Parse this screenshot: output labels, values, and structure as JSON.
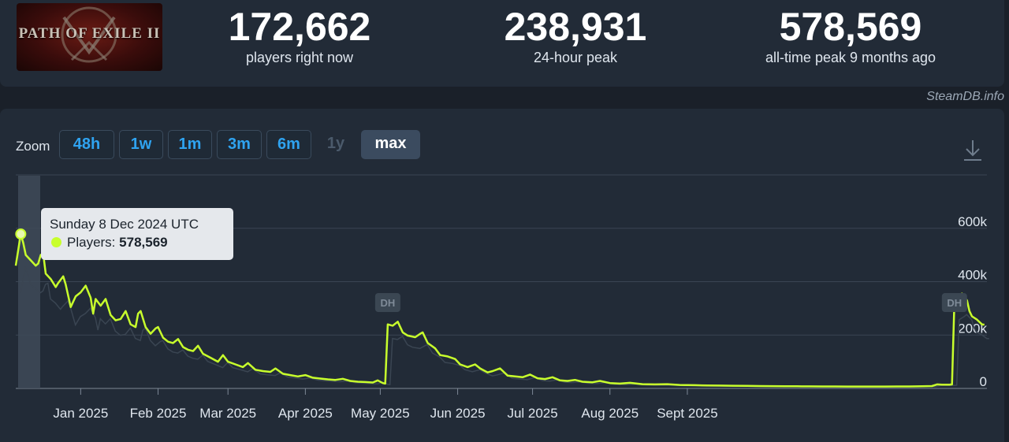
{
  "header": {
    "logo_alt": "PATH OF EXILE II",
    "stats": [
      {
        "value": "172,662",
        "label": "players right now"
      },
      {
        "value": "238,931",
        "label": "24-hour peak"
      },
      {
        "value": "578,569",
        "label": "all-time peak 9 months ago"
      }
    ]
  },
  "credit": "SteamDB.info",
  "zoom": {
    "label": "Zoom",
    "buttons": [
      {
        "label": "48h",
        "state": "normal"
      },
      {
        "label": "1w",
        "state": "normal"
      },
      {
        "label": "1m",
        "state": "normal"
      },
      {
        "label": "3m",
        "state": "normal"
      },
      {
        "label": "6m",
        "state": "normal"
      },
      {
        "label": "1y",
        "state": "disabled"
      },
      {
        "label": "max",
        "state": "active"
      }
    ],
    "download_icon": "download-icon"
  },
  "tooltip": {
    "date": "Sunday 8 Dec 2024 UTC",
    "series_label": "Players:",
    "value": "578,569"
  },
  "colors": {
    "line": "#c8ff2c",
    "background": "#222b37",
    "grid": "#3a4553",
    "accent_blue": "#2fa3f0"
  },
  "chart_data": {
    "type": "line",
    "series": [
      {
        "name": "Players",
        "points": [
          [
            "2024-12-06",
            460000
          ],
          [
            "2024-12-07",
            520000
          ],
          [
            "2024-12-08",
            578569
          ],
          [
            "2024-12-09",
            545000
          ],
          [
            "2024-12-10",
            500000
          ],
          [
            "2024-12-12",
            480000
          ],
          [
            "2024-12-14",
            460000
          ],
          [
            "2024-12-15",
            468000
          ],
          [
            "2024-12-16",
            500000
          ],
          [
            "2024-12-17",
            505000
          ],
          [
            "2024-12-18",
            430000
          ],
          [
            "2024-12-20",
            410000
          ],
          [
            "2024-12-22",
            380000
          ],
          [
            "2024-12-23",
            395000
          ],
          [
            "2024-12-25",
            420000
          ],
          [
            "2024-12-26",
            390000
          ],
          [
            "2024-12-28",
            305000
          ],
          [
            "2024-12-30",
            345000
          ],
          [
            "2025-01-01",
            360000
          ],
          [
            "2025-01-03",
            385000
          ],
          [
            "2025-01-05",
            340000
          ],
          [
            "2025-01-06",
            280000
          ],
          [
            "2025-01-07",
            335000
          ],
          [
            "2025-01-09",
            310000
          ],
          [
            "2025-01-11",
            335000
          ],
          [
            "2025-01-13",
            275000
          ],
          [
            "2025-01-15",
            255000
          ],
          [
            "2025-01-17",
            260000
          ],
          [
            "2025-01-19",
            290000
          ],
          [
            "2025-01-21",
            240000
          ],
          [
            "2025-01-23",
            230000
          ],
          [
            "2025-01-24",
            280000
          ],
          [
            "2025-01-25",
            290000
          ],
          [
            "2025-01-27",
            230000
          ],
          [
            "2025-01-29",
            205000
          ],
          [
            "2025-01-31",
            225000
          ],
          [
            "2025-02-01",
            230000
          ],
          [
            "2025-02-03",
            190000
          ],
          [
            "2025-02-05",
            175000
          ],
          [
            "2025-02-07",
            170000
          ],
          [
            "2025-02-09",
            185000
          ],
          [
            "2025-02-11",
            155000
          ],
          [
            "2025-02-13",
            145000
          ],
          [
            "2025-02-15",
            140000
          ],
          [
            "2025-02-17",
            160000
          ],
          [
            "2025-02-19",
            130000
          ],
          [
            "2025-02-22",
            115000
          ],
          [
            "2025-02-25",
            100000
          ],
          [
            "2025-02-27",
            125000
          ],
          [
            "2025-03-01",
            100000
          ],
          [
            "2025-03-04",
            90000
          ],
          [
            "2025-03-07",
            80000
          ],
          [
            "2025-03-09",
            95000
          ],
          [
            "2025-03-12",
            70000
          ],
          [
            "2025-03-15",
            65000
          ],
          [
            "2025-03-18",
            62000
          ],
          [
            "2025-03-20",
            75000
          ],
          [
            "2025-03-23",
            55000
          ],
          [
            "2025-03-26",
            50000
          ],
          [
            "2025-03-29",
            45000
          ],
          [
            "2025-04-01",
            50000
          ],
          [
            "2025-04-04",
            40000
          ],
          [
            "2025-04-07",
            37000
          ],
          [
            "2025-04-10",
            34000
          ],
          [
            "2025-04-13",
            32000
          ],
          [
            "2025-04-16",
            36000
          ],
          [
            "2025-04-19",
            28000
          ],
          [
            "2025-04-22",
            25000
          ],
          [
            "2025-04-25",
            24000
          ],
          [
            "2025-04-28",
            22000
          ],
          [
            "2025-04-30",
            30000
          ],
          [
            "2025-05-02",
            20000
          ],
          [
            "2025-05-03",
            18000
          ],
          [
            "2025-05-04",
            240000
          ],
          [
            "2025-05-06",
            235000
          ],
          [
            "2025-05-08",
            250000
          ],
          [
            "2025-05-10",
            210000
          ],
          [
            "2025-05-12",
            198000
          ],
          [
            "2025-05-15",
            192000
          ],
          [
            "2025-05-17",
            205000
          ],
          [
            "2025-05-18",
            210000
          ],
          [
            "2025-05-20",
            170000
          ],
          [
            "2025-05-23",
            150000
          ],
          [
            "2025-05-25",
            125000
          ],
          [
            "2025-05-28",
            120000
          ],
          [
            "2025-05-31",
            110000
          ],
          [
            "2025-06-02",
            90000
          ],
          [
            "2025-06-05",
            80000
          ],
          [
            "2025-06-08",
            90000
          ],
          [
            "2025-06-10",
            75000
          ],
          [
            "2025-06-13",
            60000
          ],
          [
            "2025-06-15",
            65000
          ],
          [
            "2025-06-18",
            75000
          ],
          [
            "2025-06-21",
            48000
          ],
          [
            "2025-06-24",
            45000
          ],
          [
            "2025-06-27",
            42000
          ],
          [
            "2025-06-30",
            52000
          ],
          [
            "2025-07-03",
            38000
          ],
          [
            "2025-07-06",
            35000
          ],
          [
            "2025-07-09",
            42000
          ],
          [
            "2025-07-12",
            30000
          ],
          [
            "2025-07-15",
            28000
          ],
          [
            "2025-07-18",
            32000
          ],
          [
            "2025-07-21",
            25000
          ],
          [
            "2025-07-25",
            23000
          ],
          [
            "2025-07-28",
            28000
          ],
          [
            "2025-08-01",
            20000
          ],
          [
            "2025-08-05",
            18000
          ],
          [
            "2025-08-09",
            21000
          ],
          [
            "2025-08-14",
            16000
          ],
          [
            "2025-08-19",
            15000
          ],
          [
            "2025-08-24",
            16000
          ],
          [
            "2025-08-29",
            13000
          ],
          [
            "2025-09-04",
            12000
          ],
          [
            "2025-09-09",
            11000
          ],
          [
            "2025-09-14",
            10500
          ],
          [
            "2025-09-19",
            10000
          ],
          [
            "2025-09-25",
            9500
          ],
          [
            "2025-09-30",
            9000
          ],
          [
            "2025-10-05",
            8500
          ],
          [
            "2025-10-10",
            8200
          ],
          [
            "2025-10-15",
            8000
          ],
          [
            "2025-10-20",
            7800
          ],
          [
            "2025-10-25",
            7500
          ],
          [
            "2025-10-30",
            7300
          ],
          [
            "2025-11-04",
            7200
          ],
          [
            "2025-11-09",
            7000
          ],
          [
            "2025-11-14",
            7000
          ],
          [
            "2025-11-19",
            7000
          ],
          [
            "2025-11-24",
            7500
          ],
          [
            "2025-11-29",
            7500
          ],
          [
            "2025-12-04",
            8000
          ],
          [
            "2025-12-08",
            9000
          ],
          [
            "2025-12-10",
            15000
          ],
          [
            "2025-12-12",
            14000
          ],
          [
            "2025-12-15",
            14000
          ],
          [
            "2025-12-16",
            15000
          ],
          [
            "2025-12-17",
            330000
          ],
          [
            "2025-12-18",
            338000
          ],
          [
            "2025-12-19",
            345000
          ],
          [
            "2025-12-20",
            355000
          ],
          [
            "2025-12-22",
            330000
          ],
          [
            "2025-12-23",
            290000
          ],
          [
            "2025-12-24",
            270000
          ],
          [
            "2025-12-26",
            258000
          ],
          [
            "2025-12-28",
            240000
          ],
          [
            "2025-12-29",
            238931
          ]
        ]
      }
    ],
    "x_ticks": [
      {
        "label": "Jan 2025",
        "date": "2025-01-01"
      },
      {
        "label": "Feb 2025",
        "date": "2025-02-01"
      },
      {
        "label": "Mar 2025",
        "date": "2025-03-01"
      },
      {
        "label": "Apr 2025",
        "date": "2025-04-01"
      },
      {
        "label": "May 2025",
        "date": "2025-05-01"
      },
      {
        "label": "Jun 2025",
        "date": "2025-06-01"
      },
      {
        "label": "Jul 2025",
        "date": "2025-07-01"
      },
      {
        "label": "Aug 2025",
        "date": "2025-08-01"
      },
      {
        "label": "Sept 2025",
        "date": "2025-09-01"
      }
    ],
    "y_ticks": [
      {
        "label": "0",
        "value": 0
      },
      {
        "label": "200k",
        "value": 200000
      },
      {
        "label": "400k",
        "value": 400000
      },
      {
        "label": "600k",
        "value": 600000
      }
    ],
    "xlim": [
      "2024-12-06",
      "2025-12-30"
    ],
    "ylim": [
      0,
      800000
    ],
    "annotations": [
      {
        "label": "DH",
        "date": "2025-05-04"
      },
      {
        "label": "DH",
        "date": "2025-12-17"
      }
    ],
    "highlight": {
      "date": "2024-12-08",
      "value": 578569
    },
    "grid": true
  }
}
